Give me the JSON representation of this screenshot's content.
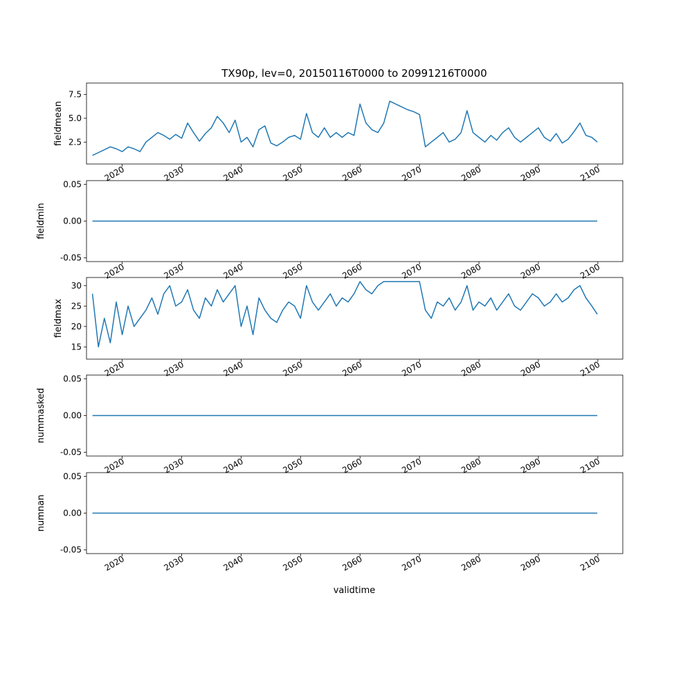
{
  "title": "TX90p, lev=0, 20150116T0000 to 20991216T0000",
  "xlabel": "validtime",
  "line_color": "#1f77b4",
  "chart_data": [
    {
      "type": "line",
      "ylabel": "fieldmean",
      "xlim": [
        2014.0,
        2104.2
      ],
      "ylim": [
        0.2,
        8.7
      ],
      "yticks": [
        2.5,
        5.0,
        7.5
      ],
      "ytick_labels": [
        "2.5",
        "5.0",
        "7.5"
      ],
      "xticks": [
        2020,
        2030,
        2040,
        2050,
        2060,
        2070,
        2080,
        2090,
        2100
      ],
      "xtick_labels": [
        "2020",
        "2030",
        "2040",
        "2050",
        "2060",
        "2070",
        "2080",
        "2090",
        "2100"
      ],
      "x": [
        2015.0,
        2016.0,
        2017.0,
        2018.0,
        2019.0,
        2020.0,
        2021.0,
        2022.0,
        2023.0,
        2024.0,
        2025.0,
        2026.0,
        2027.0,
        2028.0,
        2029.0,
        2030.0,
        2031.0,
        2032.0,
        2033.0,
        2034.0,
        2035.0,
        2036.0,
        2037.0,
        2038.0,
        2039.0,
        2040.0,
        2041.0,
        2042.0,
        2043.0,
        2044.0,
        2045.0,
        2046.0,
        2047.0,
        2048.0,
        2049.0,
        2050.0,
        2051.0,
        2052.0,
        2053.0,
        2054.0,
        2055.0,
        2056.0,
        2057.0,
        2058.0,
        2059.0,
        2060.0,
        2061.0,
        2062.0,
        2063.0,
        2064.0,
        2065.0,
        2066.0,
        2067.0,
        2068.0,
        2069.0,
        2070.0,
        2071.0,
        2072.0,
        2073.0,
        2074.0,
        2075.0,
        2076.0,
        2077.0,
        2078.0,
        2079.0,
        2080.0,
        2081.0,
        2082.0,
        2083.0,
        2084.0,
        2085.0,
        2086.0,
        2087.0,
        2088.0,
        2089.0,
        2090.0,
        2091.0,
        2092.0,
        2093.0,
        2094.0,
        2095.0,
        2096.0,
        2097.0,
        2098.0,
        2099.0,
        2099.9
      ],
      "values": [
        1.1,
        1.4,
        1.7,
        2.0,
        1.8,
        1.5,
        2.0,
        1.8,
        1.5,
        2.5,
        3.0,
        3.5,
        3.2,
        2.8,
        3.3,
        2.9,
        4.5,
        3.5,
        2.6,
        3.4,
        4.0,
        5.2,
        4.5,
        3.5,
        4.8,
        2.5,
        3.0,
        2.0,
        3.8,
        4.2,
        2.4,
        2.1,
        2.5,
        3.0,
        3.2,
        2.8,
        5.5,
        3.5,
        3.0,
        4.0,
        3.0,
        3.5,
        3.0,
        3.5,
        3.2,
        6.5,
        4.5,
        3.8,
        3.5,
        4.5,
        6.8,
        6.5,
        6.2,
        5.9,
        5.7,
        5.4,
        2.0,
        2.5,
        3.0,
        3.5,
        2.5,
        2.8,
        3.5,
        5.8,
        3.5,
        3.0,
        2.5,
        3.2,
        2.7,
        3.5,
        4.0,
        3.0,
        2.5,
        3.0,
        3.5,
        4.0,
        3.0,
        2.6,
        3.4,
        2.4,
        2.8,
        3.6,
        4.5,
        3.2,
        3.0,
        2.5
      ]
    },
    {
      "type": "line",
      "ylabel": "fieldmin",
      "xlim": [
        2014.0,
        2104.2
      ],
      "ylim": [
        -0.055,
        0.055
      ],
      "yticks": [
        -0.05,
        0.0,
        0.05
      ],
      "ytick_labels": [
        "-0.05",
        "0.00",
        "0.05"
      ],
      "xticks": [
        2020,
        2030,
        2040,
        2050,
        2060,
        2070,
        2080,
        2090,
        2100
      ],
      "xtick_labels": [
        "2020",
        "2030",
        "2040",
        "2050",
        "2060",
        "2070",
        "2080",
        "2090",
        "2100"
      ],
      "x": [
        2015.0,
        2099.9
      ],
      "values": [
        0.0,
        0.0
      ]
    },
    {
      "type": "line",
      "ylabel": "fieldmax",
      "xlim": [
        2014.0,
        2104.2
      ],
      "ylim": [
        12,
        32
      ],
      "yticks": [
        15,
        20,
        25,
        30
      ],
      "ytick_labels": [
        "15",
        "20",
        "25",
        "30"
      ],
      "xticks": [
        2020,
        2030,
        2040,
        2050,
        2060,
        2070,
        2080,
        2090,
        2100
      ],
      "xtick_labels": [
        "2020",
        "2030",
        "2040",
        "2050",
        "2060",
        "2070",
        "2080",
        "2090",
        "2100"
      ],
      "x": [
        2015.0,
        2016.0,
        2017.0,
        2018.0,
        2019.0,
        2020.0,
        2021.0,
        2022.0,
        2023.0,
        2024.0,
        2025.0,
        2026.0,
        2027.0,
        2028.0,
        2029.0,
        2030.0,
        2031.0,
        2032.0,
        2033.0,
        2034.0,
        2035.0,
        2036.0,
        2037.0,
        2038.0,
        2039.0,
        2040.0,
        2041.0,
        2042.0,
        2043.0,
        2044.0,
        2045.0,
        2046.0,
        2047.0,
        2048.0,
        2049.0,
        2050.0,
        2051.0,
        2052.0,
        2053.0,
        2054.0,
        2055.0,
        2056.0,
        2057.0,
        2058.0,
        2059.0,
        2060.0,
        2061.0,
        2062.0,
        2063.0,
        2064.0,
        2065.0,
        2066.0,
        2067.0,
        2068.0,
        2069.0,
        2070.0,
        2071.0,
        2072.0,
        2073.0,
        2074.0,
        2075.0,
        2076.0,
        2077.0,
        2078.0,
        2079.0,
        2080.0,
        2081.0,
        2082.0,
        2083.0,
        2084.0,
        2085.0,
        2086.0,
        2087.0,
        2088.0,
        2089.0,
        2090.0,
        2091.0,
        2092.0,
        2093.0,
        2094.0,
        2095.0,
        2096.0,
        2097.0,
        2098.0,
        2099.0,
        2099.9
      ],
      "values": [
        28,
        15,
        22,
        16,
        26,
        18,
        25,
        20,
        22,
        24,
        27,
        23,
        28,
        30,
        25,
        26,
        29,
        24,
        22,
        27,
        25,
        29,
        26,
        28,
        30,
        20,
        25,
        18,
        27,
        24,
        22,
        21,
        24,
        26,
        25,
        22,
        30,
        26,
        24,
        26,
        28,
        25,
        27,
        26,
        28,
        31,
        29,
        28,
        30,
        31,
        31,
        31,
        31,
        31,
        31,
        31,
        24,
        22,
        26,
        25,
        27,
        24,
        26,
        30,
        24,
        26,
        25,
        27,
        24,
        26,
        28,
        25,
        24,
        26,
        28,
        27,
        25,
        26,
        28,
        26,
        27,
        29,
        30,
        27,
        25,
        23
      ]
    },
    {
      "type": "line",
      "ylabel": "nummasked",
      "xlim": [
        2014.0,
        2104.2
      ],
      "ylim": [
        -0.055,
        0.055
      ],
      "yticks": [
        -0.05,
        0.0,
        0.05
      ],
      "ytick_labels": [
        "-0.05",
        "0.00",
        "0.05"
      ],
      "xticks": [
        2020,
        2030,
        2040,
        2050,
        2060,
        2070,
        2080,
        2090,
        2100
      ],
      "xtick_labels": [
        "2020",
        "2030",
        "2040",
        "2050",
        "2060",
        "2070",
        "2080",
        "2090",
        "2100"
      ],
      "x": [
        2015.0,
        2099.9
      ],
      "values": [
        0.0,
        0.0
      ]
    },
    {
      "type": "line",
      "ylabel": "numnan",
      "xlim": [
        2014.0,
        2104.2
      ],
      "ylim": [
        -0.055,
        0.055
      ],
      "yticks": [
        -0.05,
        0.0,
        0.05
      ],
      "ytick_labels": [
        "-0.05",
        "0.00",
        "0.05"
      ],
      "xticks": [
        2020,
        2030,
        2040,
        2050,
        2060,
        2070,
        2080,
        2090,
        2100
      ],
      "xtick_labels": [
        "2020",
        "2030",
        "2040",
        "2050",
        "2060",
        "2070",
        "2080",
        "2090",
        "2100"
      ],
      "x": [
        2015.0,
        2099.9
      ],
      "values": [
        0.0,
        0.0
      ]
    }
  ]
}
